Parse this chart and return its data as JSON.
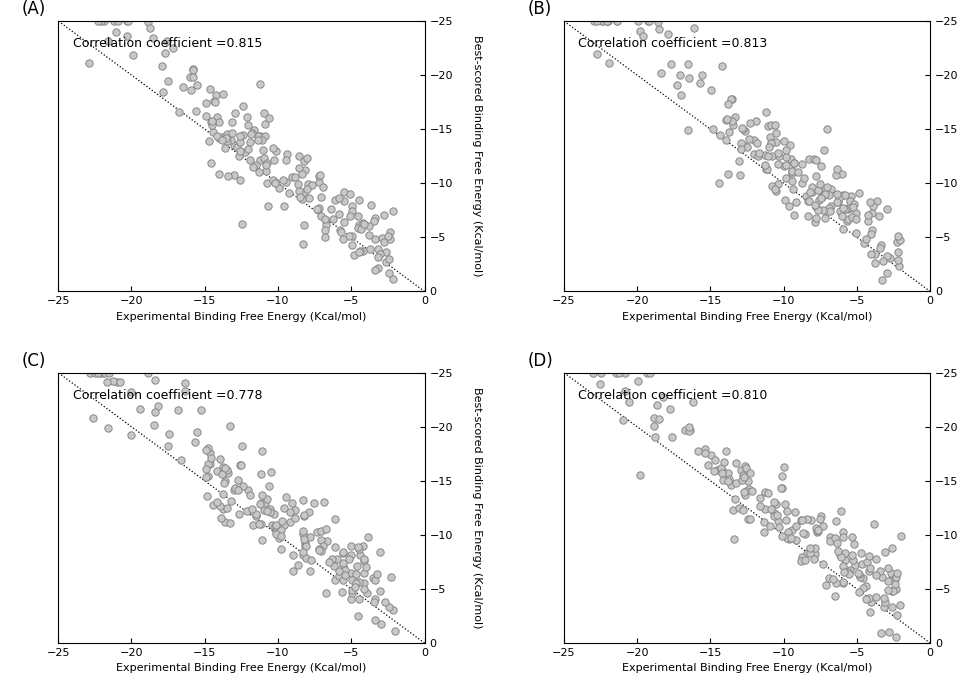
{
  "panels": [
    {
      "label": "A",
      "corr": "0.815"
    },
    {
      "label": "B",
      "corr": "0.813"
    },
    {
      "label": "C",
      "corr": "0.778"
    },
    {
      "label": "D",
      "corr": "0.810"
    }
  ],
  "xlim": [
    -25,
    0
  ],
  "ylim_top": 0,
  "ylim_bottom": -25,
  "xticks": [
    -25,
    -20,
    -15,
    -10,
    -5,
    0
  ],
  "yticks": [
    0,
    -5,
    -10,
    -15,
    -20,
    -25
  ],
  "xlabel": "Experimental Binding Free Energy (Kcal/mol)",
  "ylabel": "Best-scored Binding Free Energy (Kcal/mol)",
  "marker_facecolor": "#c8c8c8",
  "marker_edge_color": "#888888",
  "marker_size": 28,
  "marker_lw": 0.7,
  "background_color": "#ffffff",
  "seeds": [
    42,
    123,
    777,
    999
  ],
  "n_points": 200
}
